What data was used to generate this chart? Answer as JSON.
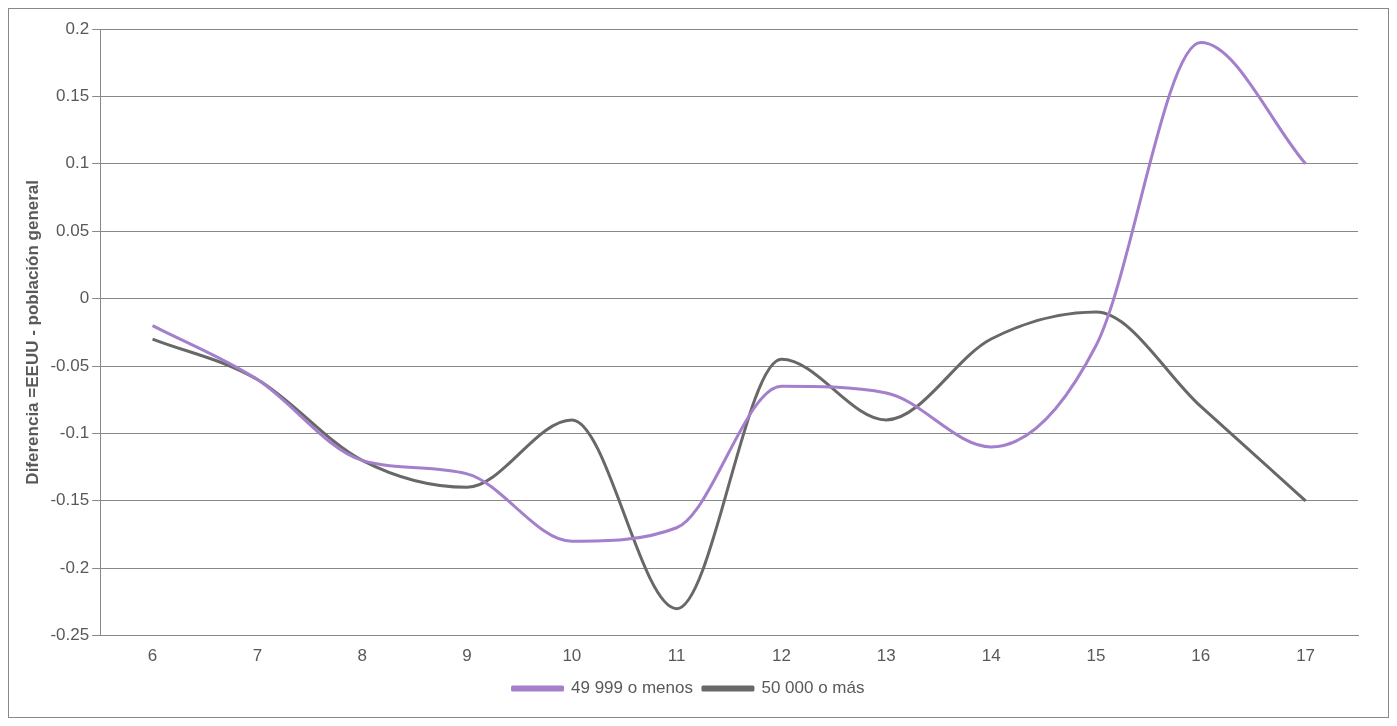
{
  "chart_data": {
    "type": "line",
    "ylabel": "Diferencia =EEUU - población general",
    "categories": [
      "6",
      "7",
      "8",
      "9",
      "10",
      "11",
      "12",
      "13",
      "14",
      "15",
      "16",
      "17"
    ],
    "series": [
      {
        "name": "49 999 o menos",
        "color": "#a47fcc",
        "values": [
          -0.02,
          -0.06,
          -0.12,
          -0.13,
          -0.18,
          -0.17,
          -0.065,
          -0.07,
          -0.11,
          -0.035,
          0.19,
          0.1
        ]
      },
      {
        "name": "50 000 o más",
        "color": "#686868",
        "values": [
          -0.03,
          -0.06,
          -0.12,
          -0.14,
          -0.09,
          -0.23,
          -0.045,
          -0.09,
          -0.03,
          -0.01,
          -0.08,
          -0.15
        ]
      }
    ],
    "ylim": [
      -0.25,
      0.2
    ],
    "yticks": [
      -0.25,
      -0.2,
      -0.15,
      -0.1,
      -0.05,
      0,
      0.05,
      0.1,
      0.15,
      0.2
    ],
    "grid": "y",
    "legend": "bottom",
    "marker": "none",
    "line_style": "solid"
  }
}
